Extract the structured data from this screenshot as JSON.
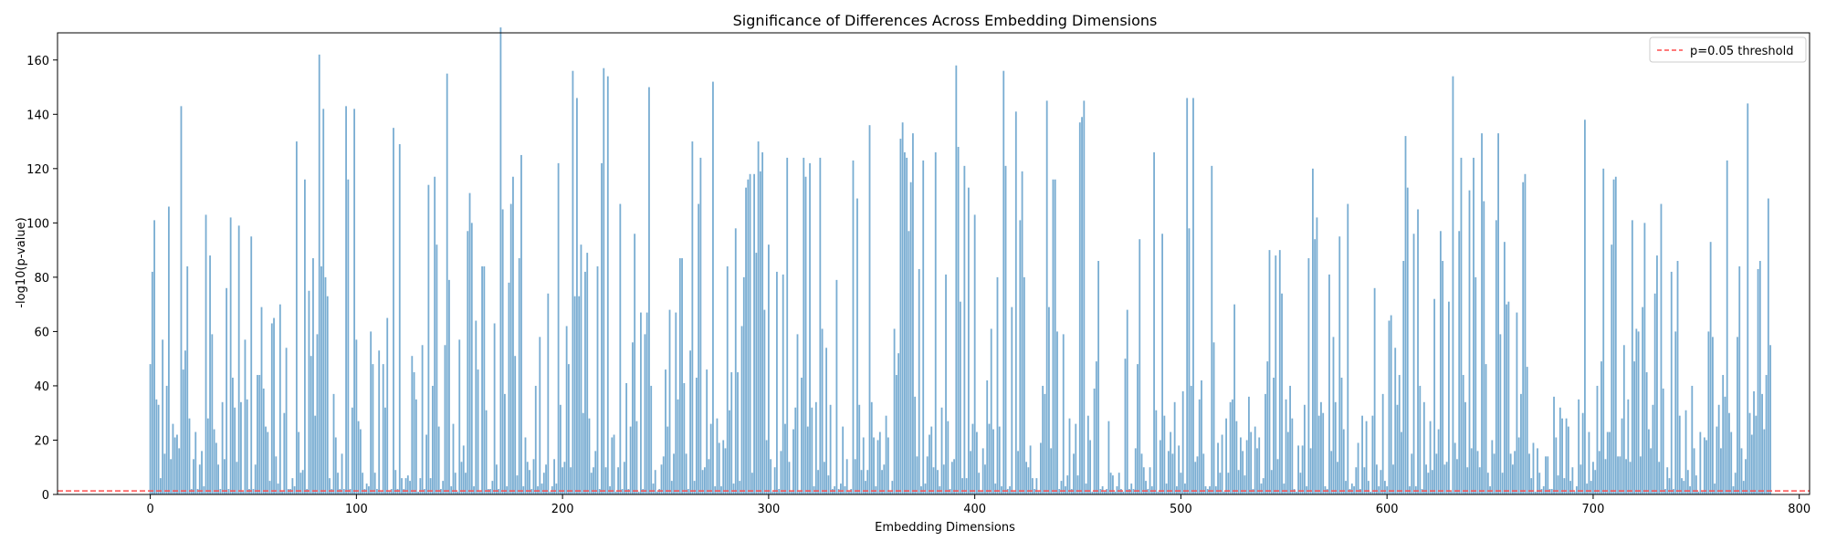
{
  "chart_data": {
    "type": "bar",
    "title": "Significance of Differences Across Embedding Dimensions",
    "xlabel": "Embedding Dimensions",
    "ylabel": "-log10(p-value)",
    "xlim": [
      -45,
      805
    ],
    "ylim": [
      0,
      170
    ],
    "x_ticks": [
      "0",
      "100",
      "200",
      "300",
      "400",
      "500",
      "600",
      "700",
      "800"
    ],
    "y_ticks": [
      "0",
      "20",
      "40",
      "60",
      "80",
      "100",
      "120",
      "140",
      "160"
    ],
    "grid": false,
    "legend_position": "upper right",
    "bar_color": "#1f77b4",
    "bar_alpha": 0.6,
    "threshold": {
      "label": "p=0.05 threshold",
      "value": 1.3,
      "color": "#ff4d4d",
      "style": "dashed"
    },
    "values": [
      48,
      82,
      101,
      35,
      33,
      6,
      57,
      15,
      40,
      106,
      13,
      26,
      21,
      22,
      17,
      143,
      46,
      53,
      84,
      28,
      2,
      13,
      23,
      2,
      11,
      16,
      3,
      103,
      28,
      88,
      59,
      24,
      19,
      11,
      2,
      34,
      13,
      76,
      2,
      102,
      43,
      32,
      12,
      99,
      34,
      1,
      57,
      35,
      2,
      95,
      2,
      11,
      44,
      44,
      69,
      39,
      25,
      23,
      5,
      63,
      65,
      14,
      4,
      70,
      1,
      30,
      54,
      2,
      2,
      6,
      3,
      130,
      23,
      8,
      9,
      116,
      2,
      75,
      51,
      87,
      29,
      59,
      162,
      84,
      142,
      80,
      73,
      6,
      2,
      37,
      21,
      8,
      2,
      15,
      2,
      143,
      116,
      2,
      32,
      142,
      57,
      27,
      24,
      8,
      2,
      4,
      3,
      60,
      48,
      8,
      2,
      53,
      1,
      48,
      32,
      65,
      1,
      2,
      135,
      9,
      2,
      129,
      6,
      2,
      6,
      7,
      5,
      51,
      45,
      35,
      1,
      6,
      55,
      2,
      22,
      114,
      6,
      40,
      117,
      92,
      25,
      2,
      5,
      55,
      155,
      79,
      3,
      26,
      8,
      1,
      57,
      12,
      18,
      8,
      97,
      111,
      100,
      3,
      64,
      46,
      1,
      84,
      84,
      31,
      2,
      2,
      5,
      63,
      11,
      2,
      172,
      105,
      37,
      3,
      78,
      107,
      117,
      51,
      7,
      87,
      125,
      3,
      21,
      12,
      9,
      2,
      13,
      40,
      3,
      58,
      4,
      8,
      11,
      74,
      1,
      3,
      13,
      4,
      122,
      33,
      10,
      12,
      62,
      48,
      10,
      156,
      73,
      146,
      73,
      92,
      30,
      82,
      89,
      28,
      8,
      10,
      16,
      84,
      2,
      122,
      157,
      10,
      154,
      3,
      21,
      22,
      1,
      10,
      107,
      2,
      12,
      41,
      2,
      25,
      56,
      96,
      27,
      1,
      67,
      2,
      59,
      67,
      150,
      40,
      4,
      9,
      1,
      2,
      11,
      14,
      46,
      25,
      68,
      5,
      15,
      67,
      35,
      87,
      87,
      41,
      15,
      2,
      53,
      130,
      5,
      43,
      107,
      124,
      9,
      10,
      46,
      13,
      26,
      152,
      3,
      28,
      19,
      3,
      20,
      17,
      84,
      31,
      45,
      4,
      98,
      45,
      5,
      62,
      80,
      113,
      116,
      118,
      8,
      118,
      89,
      130,
      119,
      126,
      68,
      20,
      92,
      13,
      1,
      10,
      82,
      2,
      16,
      81,
      26,
      124,
      12,
      1,
      24,
      32,
      59,
      1,
      43,
      124,
      117,
      25,
      122,
      32,
      3,
      34,
      9,
      124,
      61,
      12,
      54,
      7,
      33,
      2,
      3,
      79,
      2,
      4,
      25,
      3,
      13,
      1,
      2,
      123,
      13,
      109,
      33,
      9,
      21,
      5,
      9,
      136,
      34,
      21,
      3,
      20,
      23,
      9,
      11,
      29,
      21,
      1,
      5,
      61,
      44,
      52,
      131,
      137,
      126,
      124,
      97,
      115,
      133,
      36,
      14,
      83,
      3,
      123,
      4,
      14,
      22,
      25,
      10,
      126,
      9,
      3,
      32,
      11,
      81,
      27,
      2,
      12,
      13,
      158,
      128,
      71,
      6,
      121,
      6,
      113,
      16,
      26,
      103,
      23,
      8,
      1,
      17,
      11,
      42,
      26,
      61,
      24,
      4,
      80,
      25,
      3,
      156,
      121,
      2,
      3,
      69,
      1,
      141,
      16,
      101,
      119,
      80,
      12,
      10,
      18,
      6,
      2,
      6,
      1,
      19,
      40,
      37,
      145,
      69,
      17,
      116,
      116,
      60,
      2,
      5,
      59,
      3,
      7,
      28,
      2,
      15,
      26,
      7,
      137,
      139,
      145,
      4,
      29,
      20,
      1,
      39,
      49,
      86,
      2,
      3,
      1,
      2,
      27,
      8,
      7,
      1,
      3,
      8,
      2,
      1,
      50,
      68,
      2,
      4,
      2,
      17,
      48,
      94,
      15,
      10,
      5,
      2,
      10,
      3,
      126,
      31,
      1,
      20,
      96,
      29,
      4,
      16,
      23,
      15,
      34,
      3,
      18,
      8,
      38,
      4,
      146,
      98,
      40,
      146,
      12,
      14,
      35,
      42,
      15,
      3,
      2,
      3,
      121,
      56,
      3,
      19,
      8,
      22,
      1,
      28,
      8,
      34,
      35,
      70,
      27,
      9,
      21,
      16,
      7,
      20,
      36,
      23,
      2,
      25,
      17,
      21,
      4,
      6,
      37,
      49,
      90,
      9,
      43,
      88,
      13,
      90,
      74,
      4,
      35,
      23,
      40,
      28,
      2,
      1,
      18,
      8,
      18,
      33,
      3,
      87,
      17,
      120,
      94,
      102,
      29,
      34,
      30,
      3,
      2,
      81,
      16,
      58,
      34,
      12,
      95,
      43,
      24,
      5,
      107,
      2,
      4,
      3,
      10,
      19,
      2,
      29,
      10,
      27,
      5,
      1,
      29,
      76,
      11,
      3,
      9,
      37,
      5,
      3,
      64,
      66,
      11,
      54,
      33,
      44,
      23,
      86,
      132,
      113,
      3,
      15,
      96,
      3,
      105,
      40,
      2,
      34,
      11,
      8,
      27,
      9,
      72,
      15,
      24,
      97,
      86,
      11,
      12,
      71,
      1,
      154,
      19,
      13,
      97,
      124,
      44,
      34,
      10,
      112,
      17,
      124,
      80,
      16,
      10,
      133,
      108,
      48,
      8,
      3,
      20,
      15,
      101,
      133,
      59,
      8,
      93,
      70,
      71,
      15,
      11,
      16,
      67,
      21,
      37,
      115,
      118,
      47,
      15,
      6,
      19,
      1,
      17,
      8,
      2,
      3,
      14,
      14,
      2,
      2,
      36,
      21,
      7,
      32,
      28,
      6,
      28,
      25,
      5,
      10,
      1,
      3,
      35,
      11,
      30,
      138,
      4,
      23,
      5,
      12,
      9,
      40,
      16,
      49,
      120,
      13,
      23,
      23,
      92,
      116,
      117,
      14,
      14,
      28,
      55,
      13,
      35,
      12,
      101,
      49,
      61,
      60,
      14,
      69,
      100,
      45,
      24,
      17,
      33,
      74,
      88,
      12,
      107,
      39,
      2,
      10,
      6,
      82,
      2,
      60,
      86,
      29,
      6,
      5,
      31,
      9,
      3,
      40,
      17,
      7,
      1,
      23,
      1,
      21,
      20,
      60,
      93,
      58,
      4,
      25,
      33,
      17,
      44,
      36,
      123,
      30,
      23,
      3,
      8,
      58,
      84,
      17,
      5,
      13,
      144,
      30,
      22,
      38,
      29,
      83,
      86,
      37,
      24,
      44,
      109,
      55
    ]
  }
}
